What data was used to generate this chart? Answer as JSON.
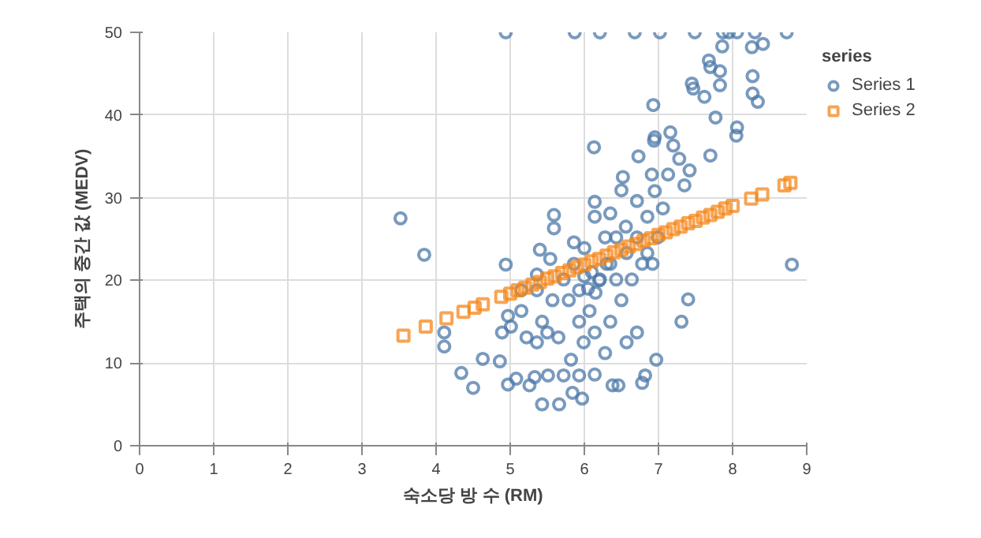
{
  "chart_data": {
    "type": "scatter",
    "xlabel": "숙소당 방 수 (RM)",
    "ylabel": "주택의 중간 값 (MEDV)",
    "legend_title": "series",
    "legend": "top right",
    "grid": true,
    "xlim": [
      0,
      9
    ],
    "xticks": [
      0,
      1,
      2,
      3,
      4,
      5,
      6,
      7,
      8,
      9
    ],
    "ylim": [
      0,
      50
    ],
    "yticks": [
      0,
      10,
      20,
      30,
      40,
      50
    ],
    "series": [
      {
        "name": "Series 1",
        "color": "#4c78a8",
        "marker": "circle",
        "x": [
          3.52,
          3.84,
          4.11,
          4.11,
          4.34,
          4.5,
          4.63,
          4.86,
          4.97,
          5.08,
          4.94,
          4.94,
          5.43,
          5.66,
          5.97,
          5.59,
          5.59,
          6.13,
          6.93,
          6.14,
          6.94,
          7.16,
          7.7,
          8.06,
          8.05,
          7.77,
          7.62,
          7.45,
          7.47,
          7.68,
          7.7,
          7.83,
          7.83,
          7.86,
          8.27,
          8.27,
          8.34,
          8.26,
          8.41,
          5.87,
          6.21,
          6.68,
          7.02,
          7.49,
          7.87,
          7.95,
          8.06,
          8.3,
          8.73,
          8.8,
          7.31,
          7.4,
          6.97,
          6.82,
          6.78,
          6.38,
          6.46,
          6.14,
          5.93,
          5.84,
          5.72,
          5.51,
          5.26,
          5.33,
          5.82,
          6.52,
          6.73,
          6.95,
          7.2,
          7.42,
          7.35,
          7.06,
          6.85,
          6.56,
          6.43,
          6.71,
          6.91,
          7.13,
          7.28,
          6.95,
          6.35,
          6.0,
          5.86,
          5.72,
          5.57,
          5.43,
          5.36,
          5.15,
          5.01,
          4.97,
          5.54,
          5.4,
          5.36,
          5.93,
          6.07,
          6.14,
          5.99,
          6.28,
          6.35,
          6.5,
          6.64,
          6.78,
          6.92,
          6.71,
          6.57,
          6.21,
          6.35,
          6.28,
          5.86,
          5.79,
          5.93,
          5.5,
          5.22,
          4.89,
          5.15,
          5.36,
          5.65,
          6.43,
          6.57,
          6.71,
          6.85,
          6.99,
          6.14,
          6.5,
          6.1,
          6.2,
          6.0,
          6.3,
          6.05,
          6.15
        ],
        "values": [
          27.5,
          23.1,
          13.7,
          12.0,
          8.8,
          7.0,
          10.5,
          10.2,
          7.4,
          8.1,
          21.9,
          50,
          5.0,
          5.0,
          5.7,
          27.9,
          26.3,
          36.1,
          41.2,
          29.5,
          36.9,
          37.9,
          35.1,
          38.5,
          37.5,
          39.7,
          42.2,
          43.8,
          43.2,
          46.6,
          45.8,
          45.3,
          43.6,
          48.3,
          44.7,
          42.6,
          41.6,
          48.2,
          48.6,
          50,
          50,
          50,
          50,
          50,
          50,
          50,
          50,
          50,
          50,
          21.9,
          15.0,
          17.7,
          10.4,
          8.5,
          7.6,
          7.3,
          7.3,
          8.6,
          8.5,
          6.4,
          8.5,
          8.5,
          7.3,
          8.3,
          10.4,
          32.5,
          35.0,
          37.3,
          36.3,
          33.3,
          31.5,
          28.7,
          27.7,
          26.5,
          25.2,
          29.6,
          32.8,
          32.8,
          34.7,
          30.8,
          28.1,
          23.9,
          22.0,
          20.1,
          17.6,
          15.0,
          12.5,
          16.3,
          14.4,
          15.7,
          22.6,
          23.7,
          20.7,
          18.8,
          16.3,
          13.7,
          12.5,
          11.2,
          15.0,
          17.6,
          20.1,
          22.0,
          22.0,
          13.7,
          12.5,
          20.1,
          22.0,
          25.2,
          24.6,
          17.6,
          15.0,
          13.7,
          13.1,
          13.7,
          18.8,
          18.8,
          13.1,
          20.1,
          23.3,
          25.2,
          23.3,
          25.2,
          27.7,
          30.9,
          21.0,
          20.0,
          20.5,
          22.0,
          19.0,
          18.5
        ]
      },
      {
        "name": "Series 2",
        "color": "#f58518",
        "marker": "square",
        "x": [
          3.56,
          3.86,
          4.14,
          4.37,
          4.52,
          4.63,
          4.88,
          5.0,
          5.1,
          5.2,
          5.3,
          5.4,
          5.5,
          5.6,
          5.7,
          5.8,
          5.9,
          6.0,
          6.1,
          6.2,
          6.3,
          6.4,
          6.5,
          6.6,
          6.7,
          6.8,
          6.9,
          7.0,
          7.1,
          7.2,
          7.3,
          7.4,
          7.5,
          7.6,
          7.7,
          7.8,
          7.9,
          8.0,
          8.25,
          8.4,
          8.7,
          8.78
        ],
        "values": [
          13.3,
          14.4,
          15.4,
          16.2,
          16.7,
          17.1,
          18.0,
          18.4,
          18.8,
          19.1,
          19.5,
          19.8,
          20.2,
          20.5,
          20.9,
          21.2,
          21.6,
          21.9,
          22.3,
          22.6,
          23.0,
          23.4,
          23.7,
          24.1,
          24.4,
          24.8,
          25.1,
          25.5,
          25.8,
          26.2,
          26.5,
          26.9,
          27.2,
          27.6,
          27.9,
          28.3,
          28.7,
          29.0,
          29.9,
          30.4,
          31.5,
          31.8
        ]
      }
    ]
  }
}
